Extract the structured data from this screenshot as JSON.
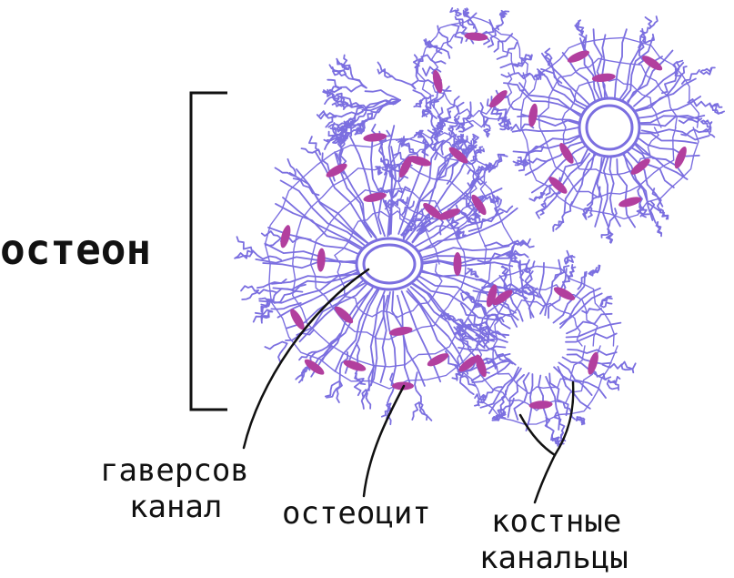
{
  "labels": {
    "osteon": "остеон",
    "haversian_canal_line1": "гаверсов",
    "haversian_canal_line2": "канал",
    "osteocyte": "остеоцит",
    "canaliculi_line1": "костные",
    "canaliculi_line2": "канальцы"
  },
  "colors": {
    "canaliculi": "#7b6fe0",
    "osteocyte": "#b23f9e",
    "leader": "#111111",
    "background": "#ffffff"
  },
  "icons": {
    "bracket": "osteon-bracket"
  }
}
